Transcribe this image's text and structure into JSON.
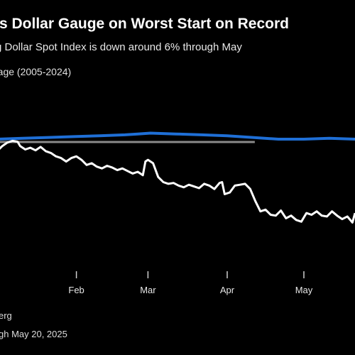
{
  "header": {
    "title": "'s Dollar Gauge on Worst Start on Record",
    "subtitle": "g Dollar Spot Index is down around 6% through May",
    "legend_average": "rage (2005-2024)"
  },
  "footer": {
    "source": "erg",
    "note": "gh May 20, 2025"
  },
  "colors": {
    "background": "#000000",
    "current_line": "#ffffff",
    "average_line": "#1f6fd6",
    "baseline": "#8a8a8a"
  },
  "chart_data": {
    "type": "line",
    "x_tick_labels": [
      "Feb",
      "Mar",
      "Apr",
      "May"
    ],
    "x_tick_days": [
      31,
      59,
      90,
      120
    ],
    "x_range": [
      0,
      140
    ],
    "y_range": [
      -7.5,
      2.0
    ],
    "grid": false,
    "series": [
      {
        "name": "",
        "color": "#1f6fd6",
        "x": [
          0,
          10,
          20,
          30,
          40,
          50,
          55,
          60,
          70,
          80,
          90,
          100,
          110,
          120,
          130,
          140
        ],
        "y": [
          0.1,
          0.15,
          0.2,
          0.25,
          0.3,
          0.35,
          0.4,
          0.45,
          0.4,
          0.35,
          0.3,
          0.2,
          0.1,
          0.1,
          0.15,
          0.1
        ]
      },
      {
        "name": "",
        "color": "#ffffff",
        "x": [
          0,
          2,
          4,
          6,
          8,
          9,
          11,
          13,
          15,
          17,
          19,
          21,
          23,
          25,
          27,
          29,
          31,
          33,
          35,
          37,
          39,
          41,
          43,
          45,
          47,
          49,
          51,
          53,
          55,
          57,
          58,
          59,
          61,
          63,
          65,
          67,
          69,
          71,
          73,
          75,
          77,
          79,
          81,
          83,
          85,
          87,
          88,
          89,
          91,
          93,
          95,
          97,
          99,
          101,
          103,
          105,
          107,
          109,
          111,
          113,
          115,
          117,
          119,
          121,
          123,
          125,
          127,
          129,
          131,
          133,
          135,
          137,
          139,
          140
        ],
        "y": [
          -0.6,
          -0.3,
          -0.1,
          0.0,
          -0.05,
          -0.3,
          -0.5,
          -0.4,
          -0.55,
          -0.35,
          -0.6,
          -0.7,
          -0.9,
          -1.0,
          -1.2,
          -1.0,
          -0.9,
          -1.1,
          -1.4,
          -1.3,
          -1.5,
          -1.6,
          -1.45,
          -1.55,
          -1.7,
          -1.6,
          -1.75,
          -1.9,
          -1.8,
          -2.0,
          -1.2,
          -1.1,
          -1.3,
          -2.1,
          -2.4,
          -2.5,
          -2.45,
          -2.6,
          -2.7,
          -2.55,
          -2.65,
          -2.75,
          -2.5,
          -2.6,
          -2.8,
          -2.45,
          -2.4,
          -3.1,
          -3.0,
          -2.6,
          -2.55,
          -2.5,
          -2.8,
          -3.5,
          -4.1,
          -4.0,
          -4.3,
          -4.35,
          -4.05,
          -4.5,
          -4.35,
          -4.6,
          -4.7,
          -4.2,
          -4.3,
          -4.1,
          -4.35,
          -4.4,
          -4.1,
          -4.35,
          -4.55,
          -4.4,
          -4.75,
          -4.2
        ]
      }
    ]
  }
}
